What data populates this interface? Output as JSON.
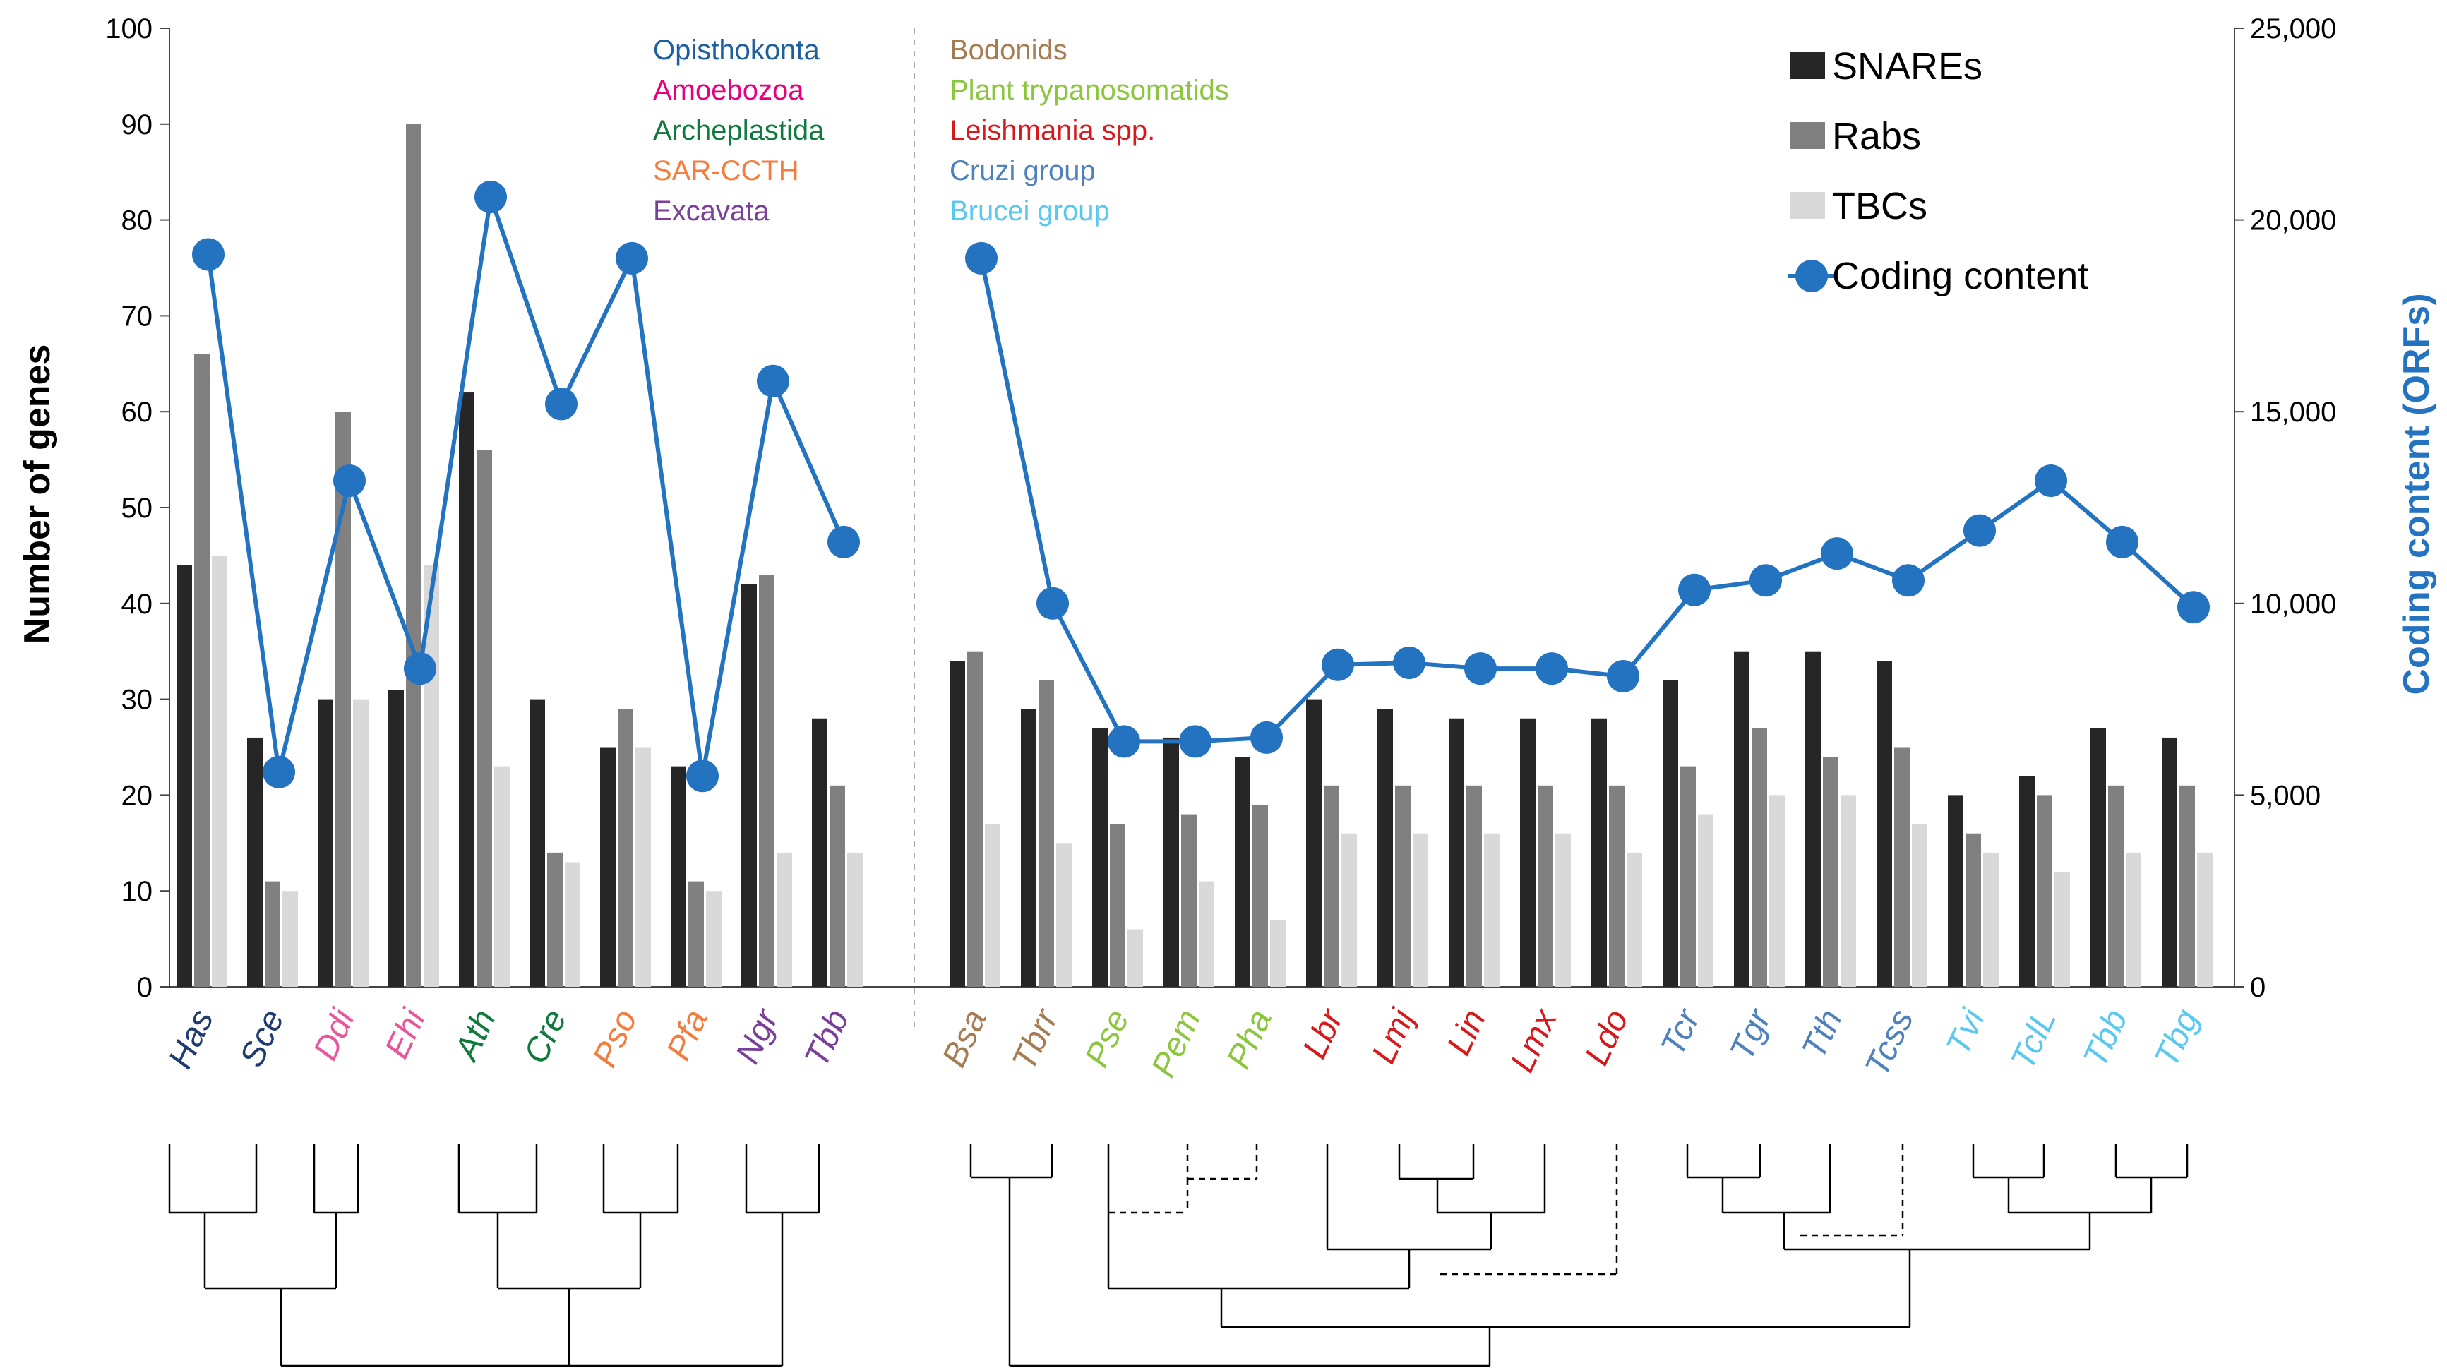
{
  "chart_data": {
    "type": "bar",
    "title": "",
    "categories": [
      "Has",
      "Sce",
      "Ddi",
      "Ehi",
      "Ath",
      "Cre",
      "Pso",
      "Pfa",
      "Ngr",
      "Tbb",
      "Bsa",
      "Tbrr",
      "Pse",
      "Pem",
      "Pha",
      "Lbr",
      "Lmj",
      "Lin",
      "Lmx",
      "Ldo",
      "Tcr",
      "Tgr",
      "Tth",
      "Tcss",
      "Tvi",
      "TclL",
      "Tbb",
      "Tbg"
    ],
    "category_colors": [
      "#1f3b6f",
      "#1f3b6f",
      "#e8559a",
      "#e8559a",
      "#0f7a3e",
      "#0f7a3e",
      "#f47c3c",
      "#f47c3c",
      "#7a3f98",
      "#7a3f98",
      "#a67c52",
      "#a67c52",
      "#8cc63f",
      "#8cc63f",
      "#8cc63f",
      "#d7191c",
      "#d7191c",
      "#d7191c",
      "#d7191c",
      "#d7191c",
      "#4f81bd",
      "#4f81bd",
      "#4f81bd",
      "#4f81bd",
      "#5bc8f0",
      "#5bc8f0",
      "#5bc8f0",
      "#5bc8f0"
    ],
    "series": [
      {
        "name": "SNAREs",
        "color": "#262626",
        "values": [
          44,
          26,
          30,
          31,
          62,
          30,
          25,
          23,
          42,
          28,
          34,
          29,
          27,
          26,
          24,
          30,
          29,
          28,
          28,
          28,
          32,
          35,
          35,
          34,
          20,
          22,
          27,
          26
        ]
      },
      {
        "name": "Rabs",
        "color": "#808080",
        "values": [
          66,
          11,
          60,
          90,
          56,
          14,
          29,
          11,
          43,
          21,
          35,
          32,
          17,
          18,
          19,
          21,
          21,
          21,
          21,
          21,
          23,
          27,
          24,
          25,
          16,
          20,
          21,
          21
        ]
      },
      {
        "name": "TBCs",
        "color": "#d9d9d9",
        "values": [
          45,
          10,
          30,
          44,
          23,
          13,
          25,
          10,
          14,
          14,
          17,
          15,
          6,
          11,
          7,
          16,
          16,
          16,
          16,
          14,
          18,
          20,
          20,
          17,
          14,
          12,
          14,
          14
        ]
      }
    ],
    "line_series": {
      "name": "Coding content",
      "color": "#2373c0",
      "axis": "right",
      "values": [
        19100,
        5600,
        13200,
        8300,
        20600,
        15200,
        19000,
        5500,
        15800,
        11600,
        19000,
        10000,
        6400,
        6400,
        6500,
        8400,
        8450,
        8300,
        8300,
        8100,
        10350,
        10600,
        11300,
        10600,
        11900,
        13200,
        11600,
        9900
      ]
    },
    "ylabel": "Number of genes",
    "ylabel_right": "Coding content (ORFs)",
    "ylim": [
      0,
      100
    ],
    "ylim_right": [
      0,
      25000
    ],
    "yticks": [
      "0",
      "10",
      "20",
      "30",
      "40",
      "50",
      "60",
      "70",
      "80",
      "90",
      "100"
    ],
    "yticks_right": [
      "0",
      "5,000",
      "10,000",
      "15,000",
      "20,000",
      "25,000"
    ],
    "legend": [
      "SNAREs",
      "Rabs",
      "TBCs",
      "Coding content"
    ],
    "legend_placement": "top-right",
    "grid": false,
    "group_legend_left": [
      {
        "label": "Opisthokonta",
        "color": "#1f5fa0"
      },
      {
        "label": "Amoebozoa",
        "color": "#e6007e"
      },
      {
        "label": "Archeplastida",
        "color": "#0f7a3e"
      },
      {
        "label": "SAR-CCTH",
        "color": "#f47c3c"
      },
      {
        "label": "Excavata",
        "color": "#7a3f98"
      }
    ],
    "group_legend_right": [
      {
        "label": "Bodonids",
        "color": "#a67c52"
      },
      {
        "label": "Plant trypanosomatids",
        "color": "#8cc63f"
      },
      {
        "label": "Leishmania spp.",
        "color": "#d7191c"
      },
      {
        "label": "Cruzi group",
        "color": "#4f81bd"
      },
      {
        "label": "Brucei group",
        "color": "#5bc8f0"
      }
    ]
  }
}
